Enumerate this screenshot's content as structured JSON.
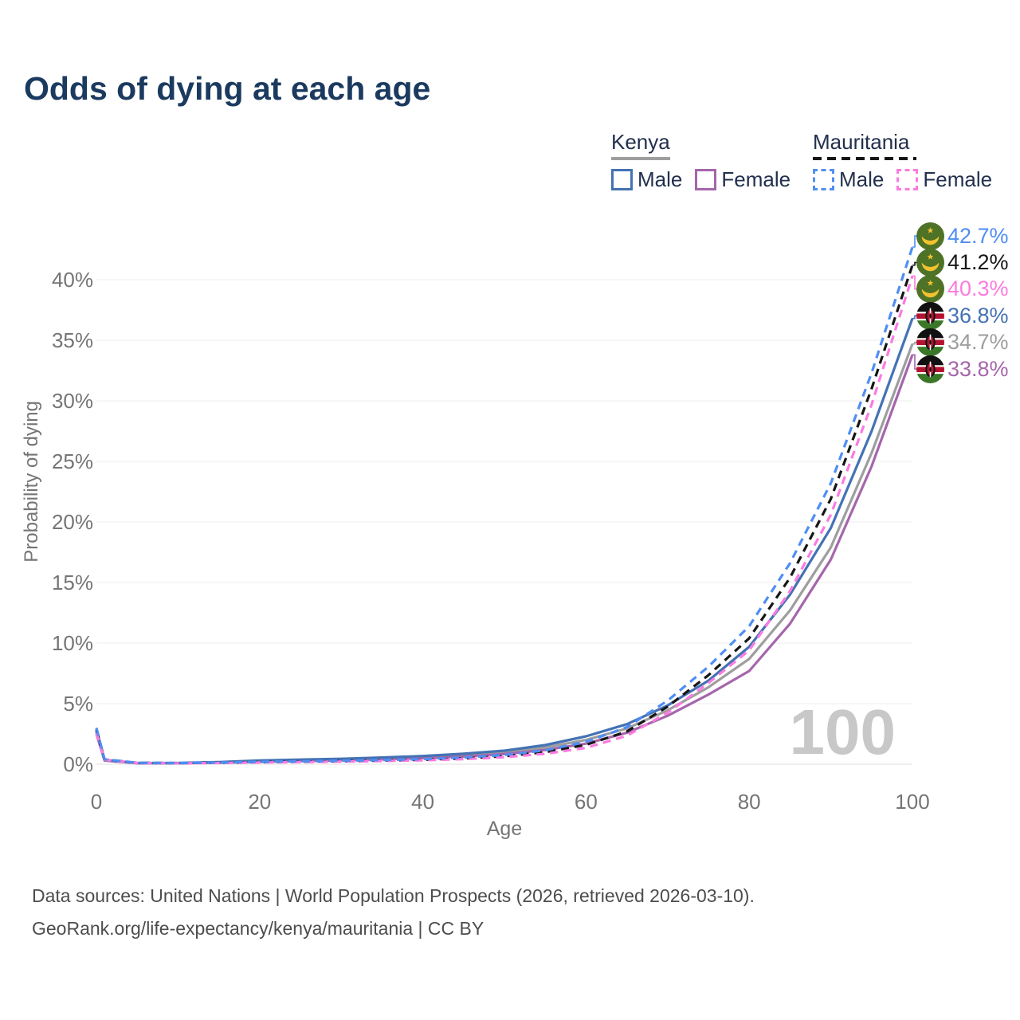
{
  "title": "Odds of dying at each age",
  "legend": {
    "kenya": {
      "title": "Kenya",
      "items": [
        {
          "label": "Male",
          "series": "kenya_male"
        },
        {
          "label": "Female",
          "series": "kenya_female"
        }
      ]
    },
    "mauritania": {
      "title": "Mauritania",
      "items": [
        {
          "label": "Male",
          "series": "mauritania_male"
        },
        {
          "label": "Female",
          "series": "mauritania_female"
        }
      ]
    }
  },
  "axes": {
    "y_title": "Probability of dying",
    "x_title": "Age"
  },
  "watermark": "100",
  "footer": {
    "line1": "Data sources: United Nations | World Population Prospects (2026, retrieved 2026-03-10).",
    "line2": "GeoRank.org/life-expectancy/kenya/mauritania | CC BY"
  },
  "colors": {
    "title": "#1b3a5f",
    "legend_text": "#22304d",
    "axis_text": "#757575",
    "grid": "#ececec",
    "watermark": "#c8c8c8",
    "footer_text": "#4d4d4d",
    "kenya_male": "#4472b4",
    "kenya_female": "#a566ab",
    "kenya_overall": "#9e9e9e",
    "mauritania_male": "#4f8ef4",
    "mauritania_female": "#fb7be0",
    "mauritania_overall": "#161616"
  },
  "chart_data": {
    "type": "line",
    "title": "Odds of dying at each age",
    "xlabel": "Age",
    "ylabel": "Probability of dying",
    "xlim": [
      0,
      100
    ],
    "ylim": [
      0,
      44
    ],
    "grid": "horizontal",
    "y_ticks": [
      0,
      5,
      10,
      15,
      20,
      25,
      30,
      35,
      40
    ],
    "y_tick_suffix": "%",
    "x_ticks": [
      0,
      20,
      40,
      60,
      80,
      100
    ],
    "x": [
      0,
      1,
      5,
      10,
      15,
      20,
      25,
      30,
      35,
      40,
      45,
      50,
      55,
      60,
      65,
      70,
      75,
      80,
      85,
      90,
      95,
      100
    ],
    "series": [
      {
        "name": "kenya-overall",
        "legend": "Kenya (both sexes)",
        "country": "Kenya",
        "flag": "kenya",
        "color_key": "kenya_overall",
        "dash": false,
        "end_label": "34.7%",
        "values": [
          2.7,
          0.33,
          0.09,
          0.09,
          0.15,
          0.25,
          0.32,
          0.39,
          0.48,
          0.59,
          0.75,
          0.98,
          1.38,
          2.0,
          2.95,
          4.45,
          6.35,
          8.7,
          12.7,
          17.9,
          25.7,
          34.7
        ]
      },
      {
        "name": "kenya-female",
        "legend": "Kenya Female",
        "country": "Kenya",
        "flag": "kenya",
        "color_key": "kenya_female",
        "dash": false,
        "end_label": "33.8%",
        "values": [
          2.5,
          0.3,
          0.08,
          0.08,
          0.12,
          0.2,
          0.26,
          0.32,
          0.4,
          0.5,
          0.64,
          0.84,
          1.18,
          1.7,
          2.6,
          4.0,
          5.75,
          7.7,
          11.6,
          16.9,
          24.6,
          33.8
        ]
      },
      {
        "name": "kenya-male",
        "legend": "Kenya Male",
        "country": "Kenya",
        "flag": "kenya",
        "color_key": "kenya_male",
        "dash": false,
        "end_label": "36.8%",
        "values": [
          2.9,
          0.35,
          0.1,
          0.1,
          0.18,
          0.3,
          0.38,
          0.45,
          0.55,
          0.68,
          0.86,
          1.12,
          1.58,
          2.3,
          3.3,
          4.85,
          6.9,
          9.7,
          14.0,
          19.5,
          27.5,
          36.8
        ]
      },
      {
        "name": "mauritania-overall",
        "legend": "Mauritania (both sexes)",
        "country": "Mauritania",
        "flag": "mauritania",
        "color_key": "mauritania_overall",
        "dash": true,
        "end_label": "41.2%",
        "values": [
          2.8,
          0.38,
          0.11,
          0.09,
          0.12,
          0.17,
          0.21,
          0.25,
          0.3,
          0.37,
          0.48,
          0.66,
          1.0,
          1.6,
          2.7,
          4.75,
          7.35,
          10.4,
          15.4,
          21.9,
          31.0,
          41.2
        ]
      },
      {
        "name": "mauritania-female",
        "legend": "Mauritania Female",
        "country": "Mauritania",
        "flag": "mauritania",
        "color_key": "mauritania_female",
        "dash": true,
        "end_label": "40.3%",
        "values": [
          2.6,
          0.36,
          0.1,
          0.08,
          0.1,
          0.14,
          0.18,
          0.21,
          0.26,
          0.32,
          0.42,
          0.58,
          0.86,
          1.35,
          2.35,
          4.25,
          6.7,
          9.4,
          14.3,
          20.6,
          29.7,
          40.3
        ]
      },
      {
        "name": "mauritania-male",
        "legend": "Mauritania Male",
        "country": "Mauritania",
        "flag": "mauritania",
        "color_key": "mauritania_male",
        "dash": true,
        "end_label": "42.7%",
        "values": [
          3.0,
          0.4,
          0.12,
          0.1,
          0.14,
          0.2,
          0.24,
          0.28,
          0.34,
          0.42,
          0.55,
          0.76,
          1.15,
          1.85,
          3.05,
          5.25,
          8.05,
          11.4,
          16.6,
          23.2,
          32.3,
          42.7
        ]
      }
    ]
  }
}
